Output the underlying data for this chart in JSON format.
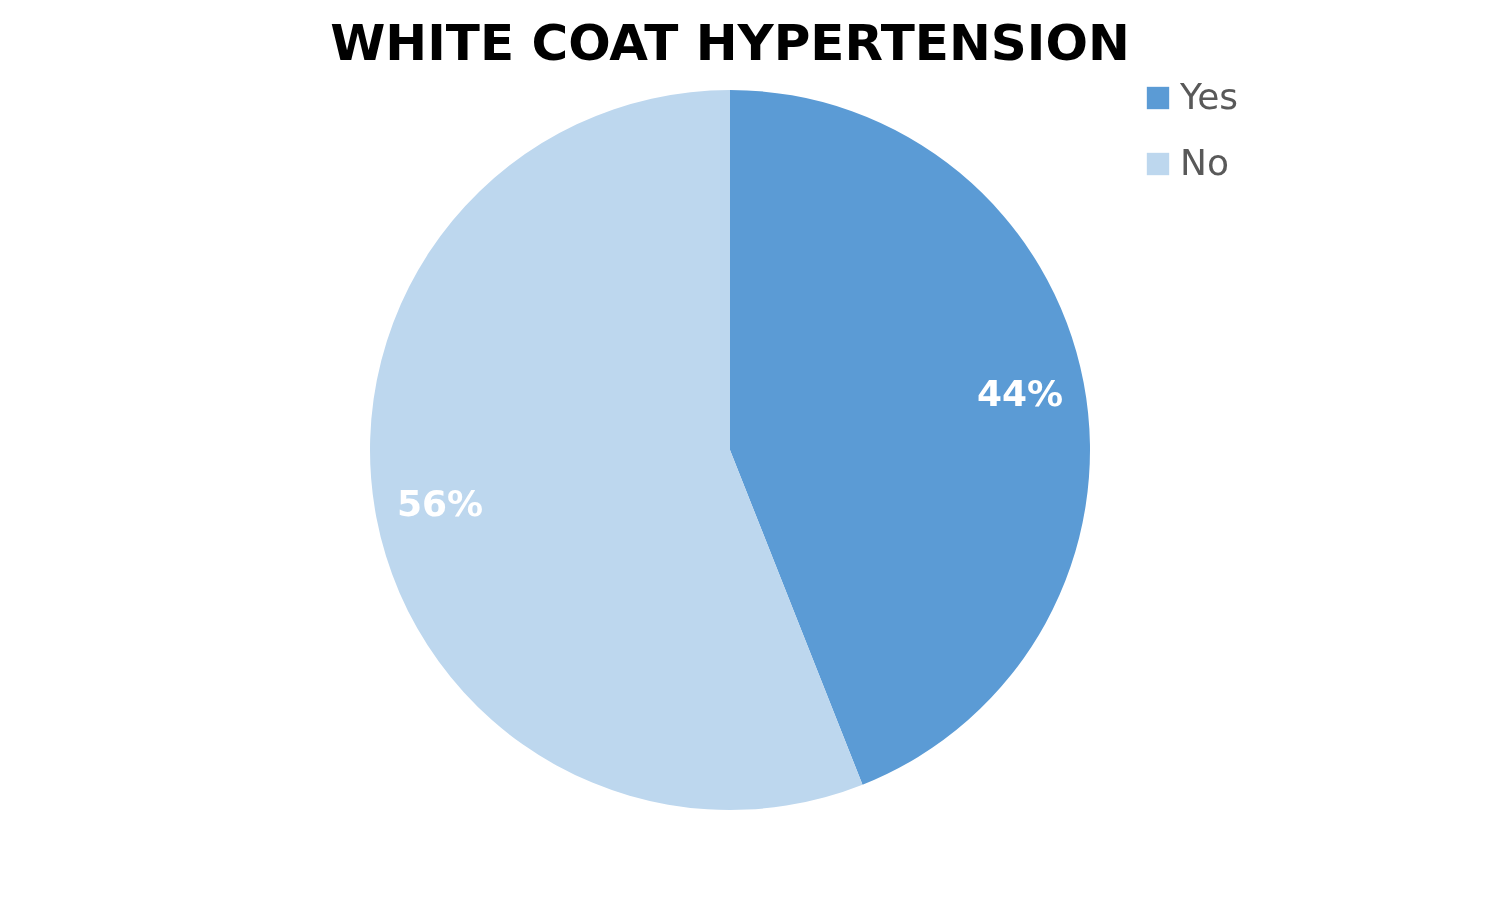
{
  "chart_data": {
    "type": "pie",
    "title": "WHITE COAT HYPERTENSION",
    "categories": [
      "Yes",
      "No"
    ],
    "values": [
      44,
      56
    ],
    "colors": [
      "#5b9bd5",
      "#bdd7ee"
    ],
    "value_labels": [
      "44%",
      "56%"
    ],
    "legend": "right"
  }
}
